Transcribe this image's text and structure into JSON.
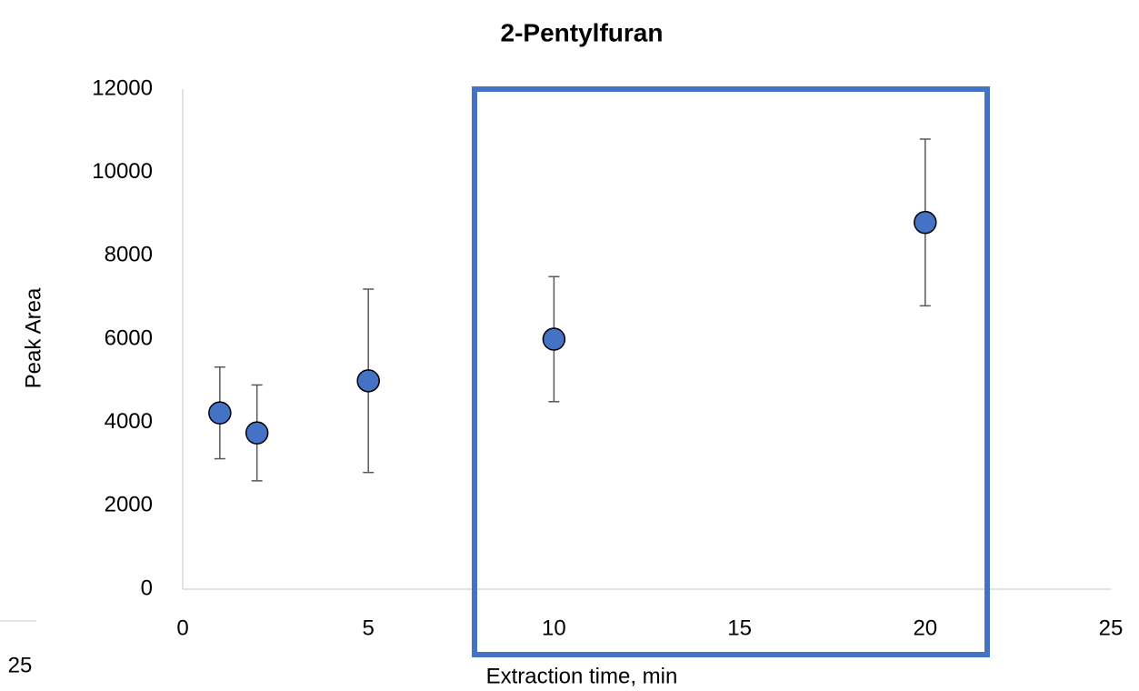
{
  "chart_data": {
    "type": "scatter",
    "title": "2-Pentylfuran",
    "x_label": "Extraction time, min",
    "y_label": "Peak Area",
    "series": [
      {
        "color": "#4472c4",
        "x": [
          1,
          2,
          5,
          10,
          20
        ],
        "values": [
          4230,
          3750,
          5000,
          6000,
          8800
        ],
        "errors": [
          1100,
          1150,
          2200,
          1500,
          2000
        ]
      }
    ],
    "xlim": [
      0,
      25
    ],
    "xticks": [
      0,
      5,
      10,
      15,
      20,
      25
    ],
    "ylim": [
      0,
      12000
    ],
    "yticks": [
      0,
      2000,
      4000,
      6000,
      8000,
      10000,
      12000
    ],
    "grid": false
  },
  "neighbor_chart": {
    "xticks": [
      25
    ]
  }
}
